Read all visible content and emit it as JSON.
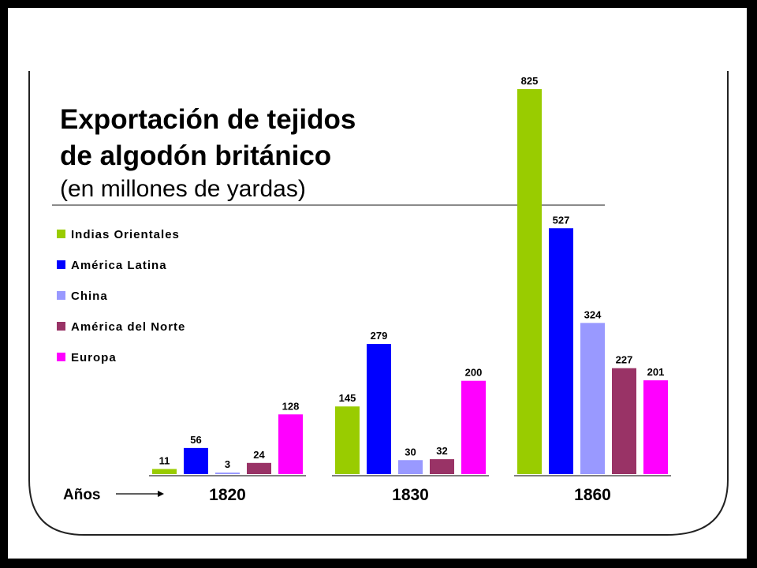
{
  "chart_data": {
    "type": "bar",
    "title_lines": [
      "Exportación de tejidos",
      "de algodón británico"
    ],
    "subtitle": "(en millones de yardas)",
    "xlabel": "Años",
    "categories": [
      "1820",
      "1830",
      "1860"
    ],
    "series": [
      {
        "name": "Indias Orientales",
        "color": "#99cc00",
        "values": [
          11,
          145,
          825
        ]
      },
      {
        "name": "América Latina",
        "color": "#0000ff",
        "values": [
          56,
          279,
          527
        ]
      },
      {
        "name": "China",
        "color": "#9999ff",
        "values": [
          3,
          30,
          324
        ]
      },
      {
        "name": "América del Norte",
        "color": "#993366",
        "values": [
          24,
          32,
          227
        ]
      },
      {
        "name": "Europa",
        "color": "#ff00ff",
        "values": [
          128,
          200,
          201
        ]
      }
    ],
    "ylim": [
      0,
      825
    ],
    "legend_position": "left",
    "grid": false
  }
}
